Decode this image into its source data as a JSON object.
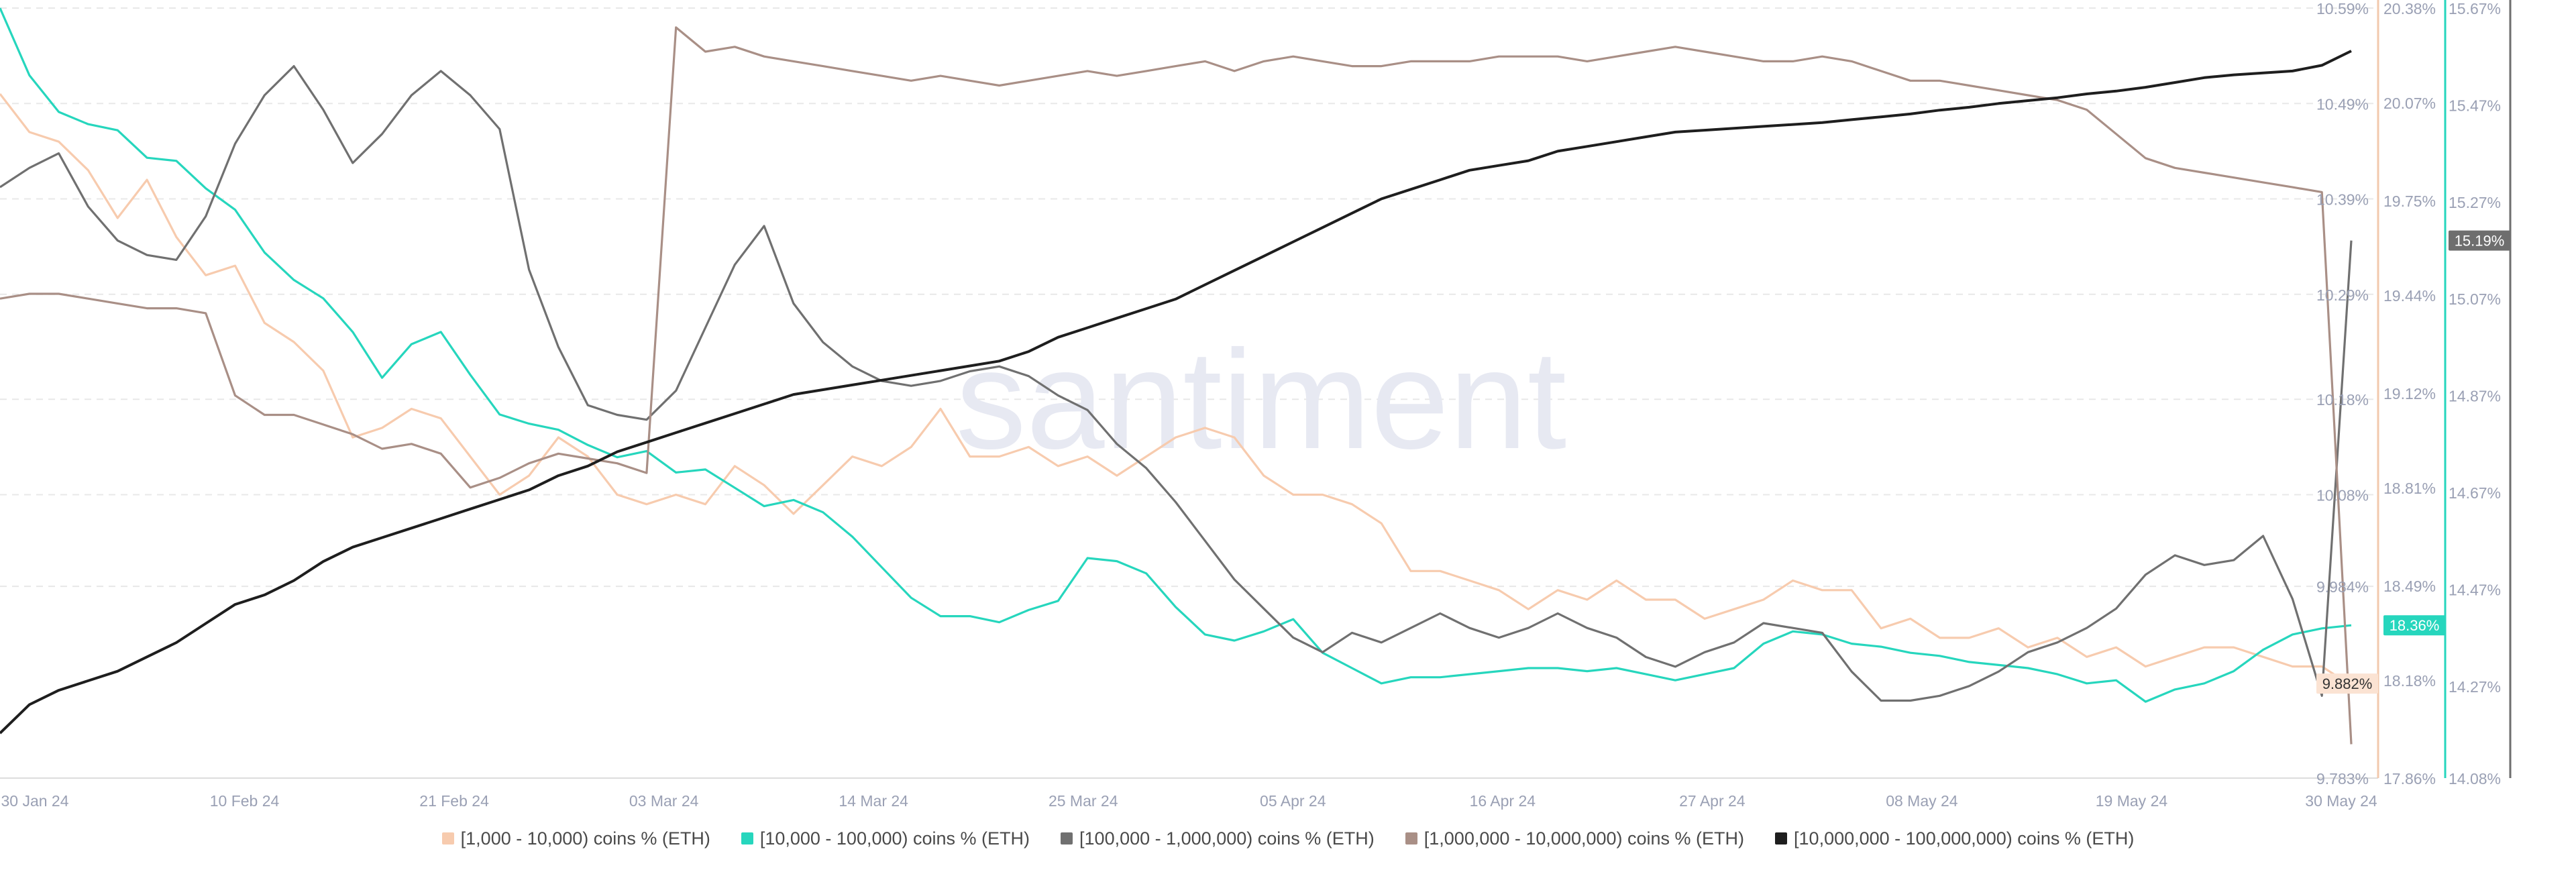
{
  "watermark": "santiment",
  "chart_data": {
    "type": "line",
    "x_ticks": [
      "30 Jan 24",
      "10 Feb 24",
      "21 Feb 24",
      "03 Mar 24",
      "14 Mar 24",
      "25 Mar 24",
      "05 Apr 24",
      "16 Apr 24",
      "27 Apr 24",
      "08 May 24",
      "19 May 24",
      "30 May 24"
    ],
    "grid": true,
    "legend_position": "bottom",
    "axes": [
      {
        "id": "ax1",
        "min": 9.783,
        "max": 10.59,
        "ticks": [
          "10.59%",
          "10.49%",
          "10.39%",
          "10.29%",
          "10.18%",
          "10.08%",
          "9.984%",
          "9.783%"
        ],
        "color": "#f2c9ad"
      },
      {
        "id": "ax2",
        "min": 17.86,
        "max": 20.38,
        "ticks": [
          "20.38%",
          "20.07%",
          "19.75%",
          "19.44%",
          "19.12%",
          "18.81%",
          "18.49%",
          "18.18%",
          "17.86%"
        ],
        "color": "#26d6bd"
      },
      {
        "id": "ax3",
        "min": 14.08,
        "max": 15.67,
        "ticks": [
          "15.67%",
          "15.47%",
          "15.27%",
          "15.07%",
          "14.87%",
          "14.67%",
          "14.47%",
          "14.27%",
          "14.08%"
        ],
        "color": "#6e6e6e"
      }
    ],
    "badges": [
      {
        "axis": "ax1",
        "text": "9.882%",
        "value": 9.882,
        "bg": "#fbe3d3",
        "fg": "#333333"
      },
      {
        "axis": "ax2",
        "text": "18.36%",
        "value": 18.36,
        "bg": "#26d6bd",
        "fg": "#ffffff"
      },
      {
        "axis": "ax3",
        "text": "15.19%",
        "value": 15.19,
        "bg": "#6e6e6e",
        "fg": "#ffffff"
      }
    ],
    "series": [
      {
        "name": "[1,000 - 10,000) coins % (ETH)",
        "color": "#f7cbae",
        "axis": "ax1",
        "values": [
          10.5,
          10.46,
          10.45,
          10.42,
          10.37,
          10.41,
          10.35,
          10.31,
          10.32,
          10.26,
          10.24,
          10.21,
          10.14,
          10.15,
          10.17,
          10.16,
          10.12,
          10.08,
          10.1,
          10.14,
          10.12,
          10.08,
          10.07,
          10.08,
          10.07,
          10.11,
          10.09,
          10.06,
          10.09,
          10.12,
          10.11,
          10.13,
          10.17,
          10.12,
          10.12,
          10.13,
          10.11,
          10.12,
          10.1,
          10.12,
          10.14,
          10.15,
          10.14,
          10.1,
          10.08,
          10.08,
          10.07,
          10.05,
          10.0,
          10.0,
          9.99,
          9.98,
          9.96,
          9.98,
          9.97,
          9.99,
          9.97,
          9.97,
          9.95,
          9.96,
          9.97,
          9.99,
          9.98,
          9.98,
          9.94,
          9.95,
          9.93,
          9.93,
          9.94,
          9.92,
          9.93,
          9.91,
          9.92,
          9.9,
          9.91,
          9.92,
          9.92,
          9.91,
          9.9,
          9.9,
          9.88
        ]
      },
      {
        "name": "[10,000 - 100,000) coins % (ETH)",
        "color": "#26d6bd",
        "axis": "ax2",
        "values": [
          20.38,
          20.16,
          20.04,
          20.0,
          19.98,
          19.89,
          19.88,
          19.79,
          19.72,
          19.58,
          19.49,
          19.43,
          19.32,
          19.17,
          19.28,
          19.32,
          19.18,
          19.05,
          19.02,
          19.0,
          18.95,
          18.91,
          18.93,
          18.86,
          18.87,
          18.81,
          18.75,
          18.77,
          18.73,
          18.65,
          18.55,
          18.45,
          18.39,
          18.39,
          18.37,
          18.41,
          18.44,
          18.58,
          18.57,
          18.53,
          18.42,
          18.33,
          18.31,
          18.34,
          18.38,
          18.27,
          18.22,
          18.17,
          18.19,
          18.19,
          18.2,
          18.21,
          18.22,
          18.22,
          18.21,
          18.22,
          18.2,
          18.18,
          18.2,
          18.22,
          18.3,
          18.34,
          18.33,
          18.3,
          18.29,
          18.27,
          18.26,
          18.24,
          18.23,
          18.22,
          18.2,
          18.17,
          18.18,
          18.11,
          18.15,
          18.17,
          18.21,
          18.28,
          18.33,
          18.35,
          18.36
        ]
      },
      {
        "name": "[100,000  - 1,000,000) coins % (ETH)",
        "color": "#707070",
        "axis": "ax3",
        "values": [
          15.3,
          15.34,
          15.37,
          15.26,
          15.19,
          15.16,
          15.15,
          15.24,
          15.39,
          15.49,
          15.55,
          15.46,
          15.35,
          15.41,
          15.49,
          15.54,
          15.49,
          15.42,
          15.13,
          14.97,
          14.85,
          14.83,
          14.82,
          14.88,
          15.01,
          15.14,
          15.22,
          15.06,
          14.98,
          14.93,
          14.9,
          14.89,
          14.9,
          14.92,
          14.93,
          14.91,
          14.87,
          14.84,
          14.77,
          14.72,
          14.65,
          14.57,
          14.49,
          14.43,
          14.37,
          14.34,
          14.38,
          14.36,
          14.39,
          14.42,
          14.39,
          14.37,
          14.39,
          14.42,
          14.39,
          14.37,
          14.33,
          14.31,
          14.34,
          14.36,
          14.4,
          14.39,
          14.38,
          14.3,
          14.24,
          14.24,
          14.25,
          14.27,
          14.3,
          14.34,
          14.36,
          14.39,
          14.43,
          14.5,
          14.54,
          14.52,
          14.53,
          14.58,
          14.45,
          14.25,
          15.19
        ]
      },
      {
        "name": "[1,000,000 - 10,000,000) coins % (ETH)",
        "color": "#a98f86",
        "axis": "ax3",
        "values": [
          15.07,
          15.08,
          15.08,
          15.07,
          15.06,
          15.05,
          15.05,
          15.04,
          14.87,
          14.83,
          14.83,
          14.81,
          14.79,
          14.76,
          14.77,
          14.75,
          14.68,
          14.7,
          14.73,
          14.75,
          14.74,
          14.73,
          14.71,
          15.63,
          15.58,
          15.59,
          15.57,
          15.56,
          15.55,
          15.54,
          15.53,
          15.52,
          15.53,
          15.52,
          15.51,
          15.52,
          15.53,
          15.54,
          15.53,
          15.54,
          15.55,
          15.56,
          15.54,
          15.56,
          15.57,
          15.56,
          15.55,
          15.55,
          15.56,
          15.56,
          15.56,
          15.57,
          15.57,
          15.57,
          15.56,
          15.57,
          15.58,
          15.59,
          15.58,
          15.57,
          15.56,
          15.56,
          15.57,
          15.56,
          15.54,
          15.52,
          15.52,
          15.51,
          15.5,
          15.49,
          15.48,
          15.46,
          15.41,
          15.36,
          15.34,
          15.33,
          15.32,
          15.31,
          15.3,
          15.29,
          14.15
        ]
      },
      {
        "name": "[10,000,000 - 100,000,000) coins % (ETH)",
        "color": "#1e1e1e",
        "axis": "ax1",
        "values": [
          9.83,
          9.86,
          9.875,
          9.885,
          9.895,
          9.91,
          9.925,
          9.945,
          9.965,
          9.975,
          9.99,
          10.01,
          10.025,
          10.035,
          10.045,
          10.055,
          10.065,
          10.075,
          10.085,
          10.1,
          10.11,
          10.125,
          10.135,
          10.145,
          10.155,
          10.165,
          10.175,
          10.185,
          10.19,
          10.195,
          10.2,
          10.205,
          10.21,
          10.215,
          10.22,
          10.23,
          10.245,
          10.255,
          10.265,
          10.275,
          10.285,
          10.3,
          10.315,
          10.33,
          10.345,
          10.36,
          10.375,
          10.39,
          10.4,
          10.41,
          10.42,
          10.425,
          10.43,
          10.44,
          10.445,
          10.45,
          10.455,
          10.46,
          10.462,
          10.464,
          10.466,
          10.468,
          10.47,
          10.473,
          10.476,
          10.479,
          10.483,
          10.486,
          10.49,
          10.493,
          10.496,
          10.5,
          10.503,
          10.507,
          10.512,
          10.517,
          10.52,
          10.522,
          10.524,
          10.53,
          10.545
        ]
      }
    ]
  }
}
